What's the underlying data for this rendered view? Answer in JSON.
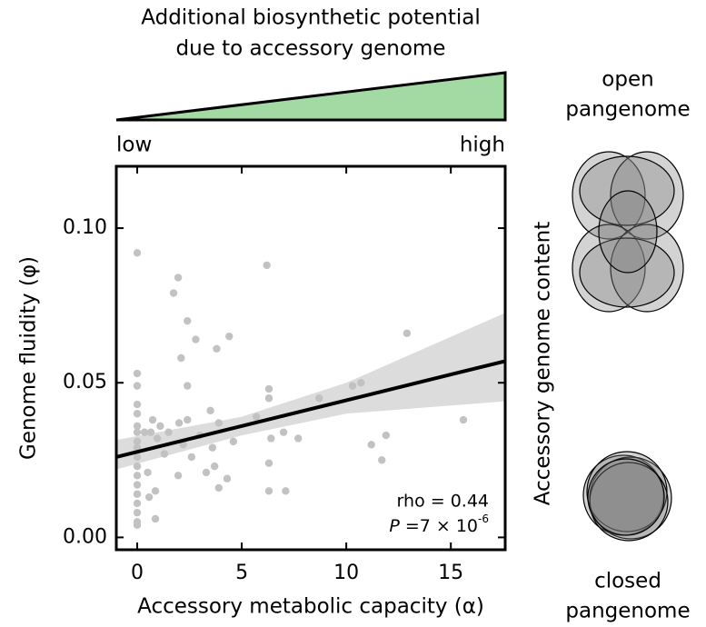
{
  "chart_data": {
    "type": "scatter",
    "title": [
      "Additional biosynthetic potential",
      "due to accessory genome"
    ],
    "gradient_labels": [
      "low",
      "high"
    ],
    "gradient_color": "#a3d9a2",
    "x_label": "Accessory metabolic capacity (α)",
    "y_label": "Genome fluidity (φ)",
    "side_label": "Accessory genome content",
    "diagram_labels": {
      "open": [
        "open",
        "pangenome"
      ],
      "closed": [
        "closed",
        "pangenome"
      ]
    },
    "annotation": "rho = 0.44",
    "p_value": {
      "symbol": "P",
      "text": " =7 × 10",
      "exponent": "-6"
    },
    "xlim": [
      -1,
      17.6
    ],
    "ylim": [
      -0.004,
      0.12
    ],
    "xticks": [
      0,
      5,
      10,
      15
    ],
    "yticks": [
      {
        "value": 0,
        "label": "0.00"
      },
      {
        "value": 0.05,
        "label": "0.05"
      },
      {
        "value": 0.1,
        "label": "0.10"
      }
    ],
    "color": "#c2c2c2",
    "x": [
      0,
      0,
      0,
      0,
      0,
      0,
      0,
      0,
      0,
      0,
      0,
      0,
      0,
      0,
      0,
      0,
      0,
      0,
      0.35,
      0.5,
      0.57,
      0.65,
      0.74,
      0.87,
      0.87,
      0.96,
      1.1,
      1.3,
      1.5,
      1.74,
      1.96,
      1.96,
      2.0,
      2.1,
      2.2,
      2.4,
      2.4,
      2.4,
      2.6,
      2.8,
      3.0,
      3.3,
      3.5,
      3.6,
      3.7,
      3.8,
      3.9,
      3.9,
      4.4,
      4.3,
      4.6,
      5.7,
      6.2,
      6.3,
      6.3,
      6.4,
      6.3,
      6.3,
      7.0,
      7.1,
      7.7,
      8.7,
      10.3,
      10.7,
      11.2,
      11.7,
      11.9,
      12.9,
      15.6
    ],
    "y": [
      0.092,
      0.053,
      0.049,
      0.043,
      0.04,
      0.036,
      0.034,
      0.031,
      0.029,
      0.026,
      0.023,
      0.02,
      0.017,
      0.014,
      0.011,
      0.008,
      0.005,
      0.004,
      0.034,
      0.021,
      0.013,
      0.034,
      0.038,
      0.015,
      0.006,
      0.032,
      0.036,
      0.027,
      0.034,
      0.079,
      0.084,
      0.02,
      0.037,
      0.058,
      0.03,
      0.07,
      0.049,
      0.038,
      0.026,
      0.064,
      0.033,
      0.021,
      0.041,
      0.029,
      0.023,
      0.061,
      0.016,
      0.037,
      0.065,
      0.019,
      0.031,
      0.039,
      0.088,
      0.048,
      0.045,
      0.032,
      0.024,
      0.015,
      0.034,
      0.015,
      0.032,
      0.045,
      0.049,
      0.05,
      0.03,
      0.025,
      0.033,
      0.066,
      0.038
    ],
    "fit": {
      "color": "#000000",
      "x": [
        -1,
        17.6
      ],
      "y": [
        0.026,
        0.057
      ]
    },
    "band": {
      "color": "#dcdcdc",
      "x": [
        -1,
        5,
        10,
        17.6
      ],
      "upper": [
        0.0315,
        0.039,
        0.05,
        0.0726
      ],
      "lower": [
        0.022,
        0.033,
        0.04,
        0.044
      ]
    }
  }
}
